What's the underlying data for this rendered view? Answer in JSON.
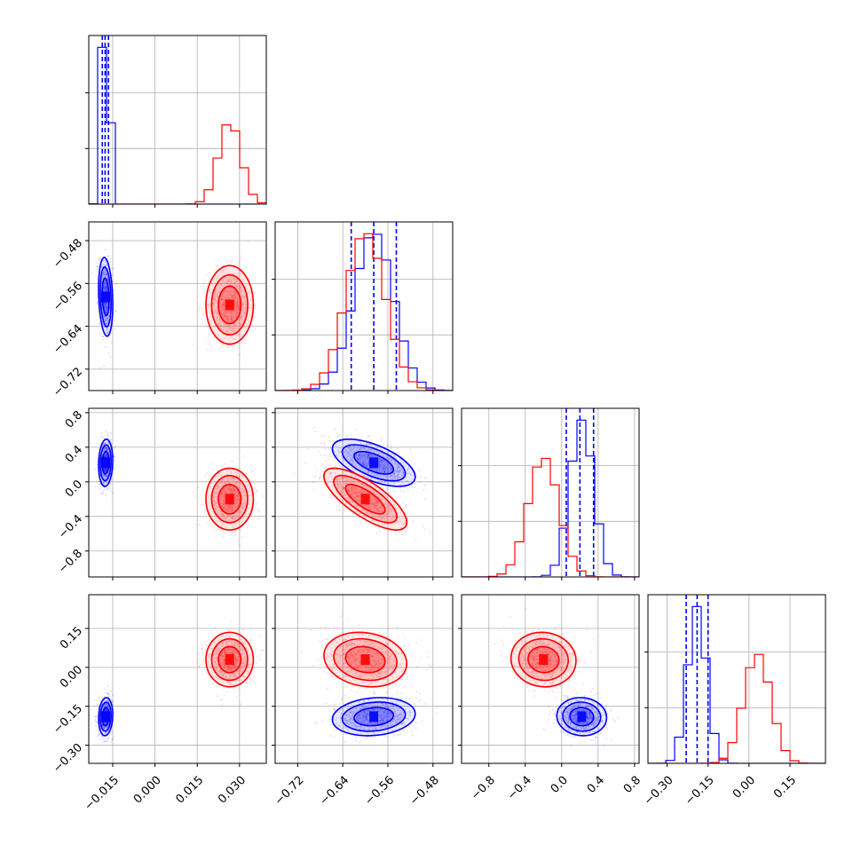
{
  "colors": {
    "series_a": "#0000ff",
    "series_b": "#ff0000",
    "grid": "#b0b0b0",
    "frame": "#000000"
  },
  "chart_data": {
    "type": "corner",
    "grid": true,
    "legend": "none",
    "parameters": [
      {
        "range": [
          -0.0235,
          0.0395
        ],
        "ticks": [
          -0.015,
          0.0,
          0.015,
          0.03
        ],
        "tick_labels": [
          "−0.015",
          "0.000",
          "0.015",
          "0.030"
        ]
      },
      {
        "range": [
          -0.76,
          -0.445
        ],
        "ticks": [
          -0.72,
          -0.64,
          -0.56,
          -0.48
        ],
        "tick_labels": [
          "−0.72",
          "−0.64",
          "−0.56",
          "−0.48"
        ]
      },
      {
        "range": [
          -1.1,
          0.85
        ],
        "ticks": [
          -0.8,
          -0.4,
          0.0,
          0.4,
          0.8
        ],
        "tick_labels": [
          "−0.8",
          "−0.4",
          "0.0",
          "0.4",
          "0.8"
        ]
      },
      {
        "range": [
          -0.37,
          0.28
        ],
        "ticks": [
          -0.3,
          -0.15,
          0.0,
          0.15
        ],
        "tick_labels": [
          "−0.30",
          "−0.15",
          "0.00",
          "0.15"
        ]
      }
    ],
    "series": [
      {
        "color": "#0000ff",
        "mean": [
          -0.0175,
          -0.585,
          0.22,
          -0.19
        ],
        "std": [
          0.0012,
          0.035,
          0.13,
          0.035
        ],
        "corr": [
          [
            0,
            1,
            -0.2
          ],
          [
            0,
            2,
            0.1
          ],
          [
            0,
            3,
            0.1
          ],
          [
            1,
            2,
            -0.6
          ],
          [
            1,
            3,
            0.15
          ],
          [
            2,
            3,
            -0.05
          ]
        ],
        "quantiles": [
          [
            -0.0187,
            -0.0177,
            -0.0165
          ],
          [
            -0.625,
            -0.585,
            -0.545
          ],
          [
            0.05,
            0.2,
            0.35
          ],
          [
            -0.23,
            -0.19,
            -0.15
          ]
        ]
      },
      {
        "color": "#ff0000",
        "mean": [
          0.0265,
          -0.6,
          -0.2,
          0.03
        ],
        "std": [
          0.004,
          0.035,
          0.17,
          0.05
        ],
        "corr": [
          [
            0,
            1,
            0.0
          ],
          [
            0,
            2,
            0.0
          ],
          [
            0,
            3,
            0.0
          ],
          [
            1,
            2,
            -0.75
          ],
          [
            1,
            3,
            -0.15
          ],
          [
            2,
            3,
            -0.05
          ]
        ],
        "quantiles": []
      }
    ]
  }
}
